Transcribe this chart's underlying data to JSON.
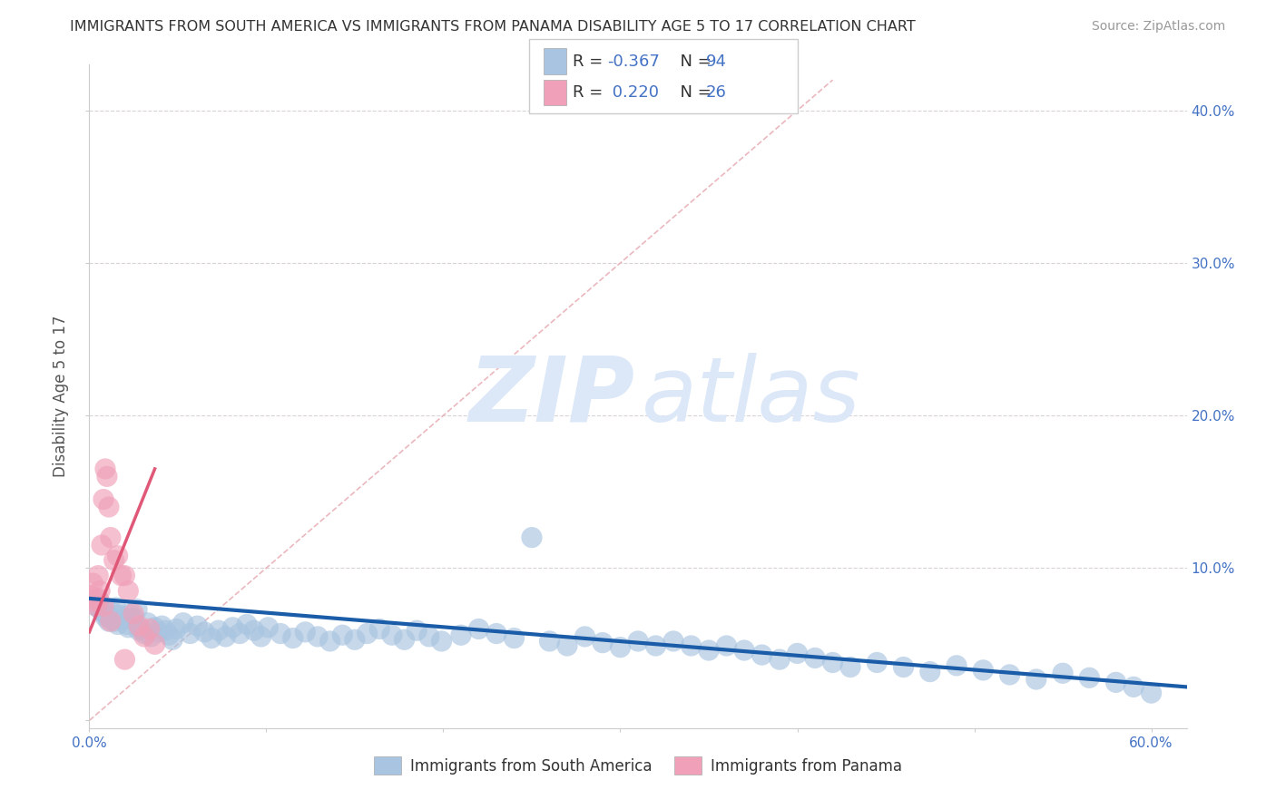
{
  "title": "IMMIGRANTS FROM SOUTH AMERICA VS IMMIGRANTS FROM PANAMA DISABILITY AGE 5 TO 17 CORRELATION CHART",
  "source": "Source: ZipAtlas.com",
  "ylabel": "Disability Age 5 to 17",
  "xlim": [
    0.0,
    0.62
  ],
  "ylim": [
    -0.005,
    0.43
  ],
  "xticks": [
    0.0,
    0.1,
    0.2,
    0.3,
    0.4,
    0.5,
    0.6
  ],
  "yticks": [
    0.0,
    0.1,
    0.2,
    0.3,
    0.4
  ],
  "ytick_labels_right": [
    "",
    "10.0%",
    "20.0%",
    "30.0%",
    "40.0%"
  ],
  "xtick_labels": [
    "0.0%",
    "",
    "",
    "",
    "",
    "",
    "60.0%"
  ],
  "blue_R": "-0.367",
  "blue_N": "94",
  "pink_R": "0.220",
  "pink_N": "26",
  "blue_color": "#a8c4e0",
  "pink_color": "#f0a0b8",
  "blue_line_color": "#1a5ca8",
  "pink_line_color": "#e05878",
  "ref_line_color": "#e8b0b8",
  "background_color": "#ffffff",
  "legend1": "Immigrants from South America",
  "legend2": "Immigrants from Panama",
  "blue_scatter_x": [
    0.005,
    0.007,
    0.009,
    0.011,
    0.013,
    0.015,
    0.017,
    0.019,
    0.021,
    0.023,
    0.025,
    0.027,
    0.029,
    0.031,
    0.033,
    0.035,
    0.037,
    0.039,
    0.041,
    0.043,
    0.045,
    0.047,
    0.049,
    0.053,
    0.057,
    0.061,
    0.065,
    0.069,
    0.073,
    0.077,
    0.081,
    0.085,
    0.089,
    0.093,
    0.097,
    0.101,
    0.108,
    0.115,
    0.122,
    0.129,
    0.136,
    0.143,
    0.15,
    0.157,
    0.164,
    0.171,
    0.178,
    0.185,
    0.192,
    0.199,
    0.21,
    0.22,
    0.23,
    0.24,
    0.25,
    0.26,
    0.27,
    0.28,
    0.29,
    0.3,
    0.31,
    0.32,
    0.33,
    0.34,
    0.35,
    0.36,
    0.37,
    0.38,
    0.39,
    0.4,
    0.41,
    0.42,
    0.43,
    0.445,
    0.46,
    0.475,
    0.49,
    0.505,
    0.52,
    0.535,
    0.55,
    0.565,
    0.58,
    0.59,
    0.6,
    0.004,
    0.006,
    0.008,
    0.01,
    0.012,
    0.014,
    0.016,
    0.022,
    0.028
  ],
  "blue_scatter_y": [
    0.079,
    0.072,
    0.068,
    0.065,
    0.071,
    0.074,
    0.069,
    0.066,
    0.063,
    0.07,
    0.067,
    0.073,
    0.06,
    0.057,
    0.064,
    0.055,
    0.061,
    0.058,
    0.062,
    0.059,
    0.056,
    0.053,
    0.06,
    0.064,
    0.057,
    0.062,
    0.058,
    0.054,
    0.059,
    0.055,
    0.061,
    0.057,
    0.063,
    0.059,
    0.055,
    0.061,
    0.057,
    0.054,
    0.058,
    0.055,
    0.052,
    0.056,
    0.053,
    0.057,
    0.06,
    0.056,
    0.053,
    0.059,
    0.055,
    0.052,
    0.056,
    0.06,
    0.057,
    0.054,
    0.12,
    0.052,
    0.049,
    0.055,
    0.051,
    0.048,
    0.052,
    0.049,
    0.052,
    0.049,
    0.046,
    0.049,
    0.046,
    0.043,
    0.04,
    0.044,
    0.041,
    0.038,
    0.035,
    0.038,
    0.035,
    0.032,
    0.036,
    0.033,
    0.03,
    0.027,
    0.031,
    0.028,
    0.025,
    0.022,
    0.018,
    0.075,
    0.073,
    0.071,
    0.069,
    0.067,
    0.065,
    0.063,
    0.061,
    0.059
  ],
  "pink_scatter_x": [
    0.001,
    0.002,
    0.003,
    0.004,
    0.005,
    0.006,
    0.007,
    0.008,
    0.009,
    0.01,
    0.011,
    0.012,
    0.014,
    0.016,
    0.018,
    0.02,
    0.022,
    0.025,
    0.028,
    0.031,
    0.034,
    0.037,
    0.005,
    0.008,
    0.012,
    0.02
  ],
  "pink_scatter_y": [
    0.082,
    0.09,
    0.078,
    0.075,
    0.095,
    0.085,
    0.115,
    0.145,
    0.165,
    0.16,
    0.14,
    0.12,
    0.105,
    0.108,
    0.095,
    0.095,
    0.085,
    0.07,
    0.062,
    0.055,
    0.06,
    0.05,
    0.08,
    0.075,
    0.065,
    0.04
  ],
  "blue_trend_x": [
    0.0,
    0.62
  ],
  "blue_trend_y": [
    0.08,
    0.022
  ],
  "pink_trend_x": [
    0.0,
    0.037
  ],
  "pink_trend_y": [
    0.058,
    0.165
  ],
  "ref_line_x": [
    0.0,
    0.42
  ],
  "ref_line_y": [
    0.0,
    0.42
  ]
}
